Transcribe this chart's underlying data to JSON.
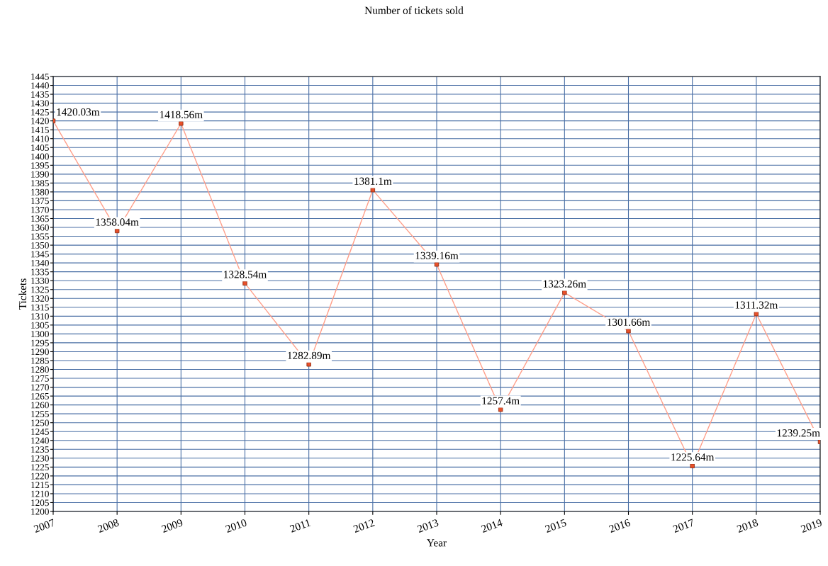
{
  "chart_data": {
    "type": "line",
    "title": "Number of tickets sold",
    "xlabel": "Year",
    "ylabel": "Tickets",
    "x": [
      2007,
      2008,
      2009,
      2010,
      2011,
      2012,
      2013,
      2014,
      2015,
      2016,
      2017,
      2018,
      2019
    ],
    "series": [
      {
        "color": "#ff9f8a",
        "values": [
          1420.03,
          1358.04,
          1418.56,
          1328.54,
          1282.89,
          1381.1,
          1339.16,
          1257.4,
          1323.26,
          1301.66,
          1225.64,
          1311.32,
          1239.25
        ],
        "value_labels": [
          "1420.03m",
          "1358.04m",
          "1418.56m",
          "1328.54m",
          "1282.89m",
          "1381.1m",
          "1339.16m",
          "1257.4m",
          "1323.26m",
          "1301.66m",
          "1225.64m",
          "1311.32m",
          "1239.25m"
        ]
      }
    ],
    "xlim": [
      2007,
      2019
    ],
    "xticks": [
      2007,
      2008,
      2009,
      2010,
      2011,
      2012,
      2013,
      2014,
      2015,
      2016,
      2017,
      2018,
      2019
    ],
    "ylim": [
      1200,
      1445
    ],
    "yticks": [
      1200,
      1205,
      1210,
      1215,
      1220,
      1225,
      1230,
      1235,
      1240,
      1245,
      1250,
      1255,
      1260,
      1265,
      1270,
      1275,
      1280,
      1285,
      1290,
      1295,
      1300,
      1305,
      1310,
      1315,
      1320,
      1325,
      1330,
      1335,
      1340,
      1345,
      1350,
      1355,
      1360,
      1365,
      1370,
      1375,
      1380,
      1385,
      1390,
      1395,
      1400,
      1405,
      1410,
      1415,
      1420,
      1425,
      1430,
      1435,
      1440,
      1445
    ],
    "grid": true,
    "marker": "square",
    "line_style": "solid",
    "legend": false
  }
}
